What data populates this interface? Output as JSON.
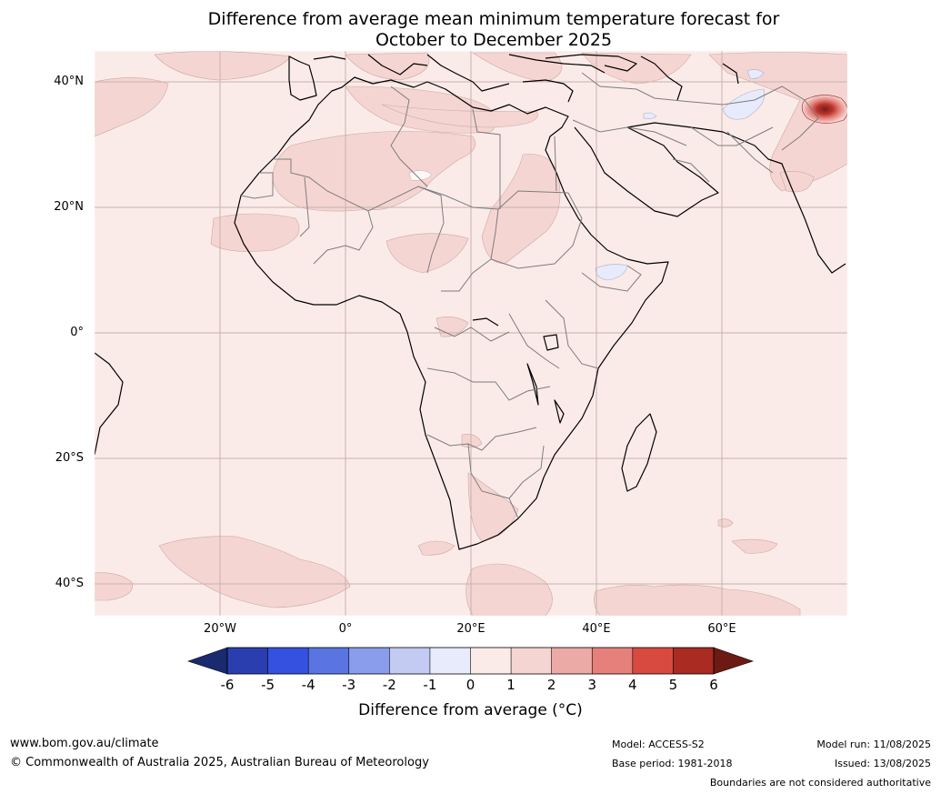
{
  "title_line1": "Difference from average mean minimum temperature forecast for",
  "title_line2": "October to December 2025",
  "map": {
    "lat_labels": [
      "40°N",
      "20°N",
      "0°",
      "20°S",
      "40°S"
    ],
    "lon_labels": [
      "20°W",
      "0°",
      "20°E",
      "40°E",
      "60°E"
    ],
    "colors": {
      "background": "#fbebe8",
      "band_1_2": "#f5d5d2",
      "band_neg1_0": "#e7ebfb",
      "hotspot": "#c8332a",
      "grid": "#c7b1ae",
      "coast": "#000000",
      "borders": "#7a7a7a"
    }
  },
  "colorbar": {
    "ticks": [
      "-6",
      "-5",
      "-4",
      "-3",
      "-2",
      "-1",
      "0",
      "1",
      "2",
      "3",
      "4",
      "5",
      "6"
    ],
    "colors": [
      "#1a2a6e",
      "#2a3eb0",
      "#3451e0",
      "#5a74e2",
      "#8a9ded",
      "#c3cbf3",
      "#e7ebfb",
      "#fbebe8",
      "#f5d5d2",
      "#ebaaa6",
      "#e5817a",
      "#d84a40",
      "#a92b22",
      "#6e1a14"
    ],
    "label": "Difference from average ($^\\circ$C)",
    "label_display": "Difference from average (°C)"
  },
  "footer": {
    "website": "www.bom.gov.au/climate",
    "copyright": "© Commonwealth of Australia 2025, Australian Bureau of Meteorology",
    "model": "Model: ACCESS-S2",
    "base_period": "Base period: 1981-2018",
    "model_run": "Model run: 11/08/2025",
    "issued": "Issued: 13/08/2025",
    "disclaimer": "Boundaries are not considered authoritative"
  }
}
